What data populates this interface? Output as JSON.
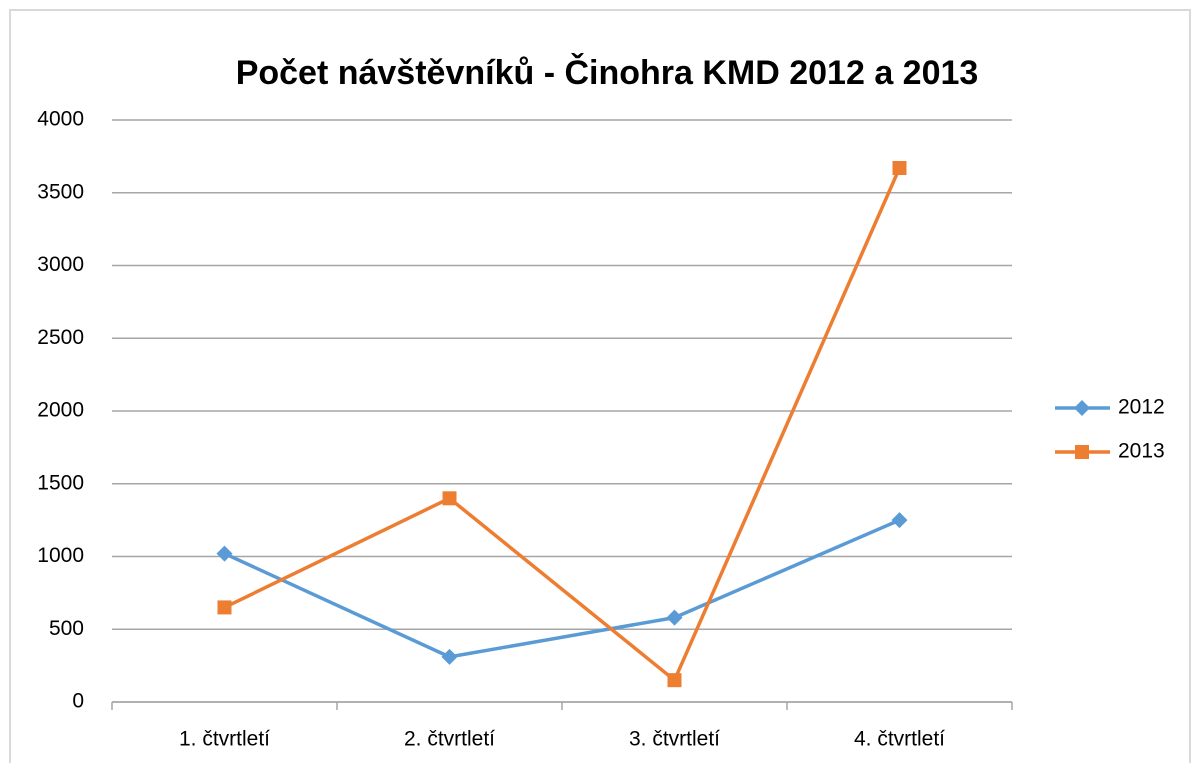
{
  "chart_data": {
    "type": "line",
    "title": "Počet návštěvníků - Činohra KMD 2012 a 2013",
    "categories": [
      "1. čtvrtletí",
      "2. čtvrtletí",
      "3. čtvrtletí",
      "4. čtvrtletí"
    ],
    "series": [
      {
        "name": "2012",
        "color": "#5b9bd5",
        "marker": "diamond",
        "values": [
          1020,
          310,
          580,
          1250
        ]
      },
      {
        "name": "2013",
        "color": "#ed7d31",
        "marker": "square",
        "values": [
          650,
          1400,
          150,
          3670
        ]
      }
    ],
    "ylim": [
      0,
      4000
    ],
    "yticks": [
      0,
      500,
      1000,
      1500,
      2000,
      2500,
      3000,
      3500,
      4000
    ],
    "grid": true,
    "legend": "right"
  }
}
